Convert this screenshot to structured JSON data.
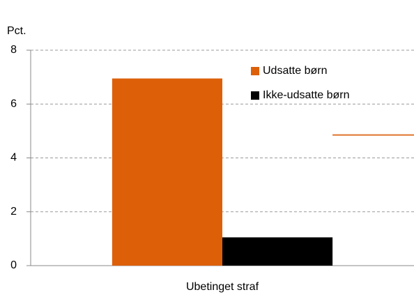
{
  "chart_data": {
    "type": "bar",
    "ylabel": "Pct.",
    "categories": [
      "Ubetinget straf"
    ],
    "series": [
      {
        "name": "Udsatte børn",
        "color": "#dd6009",
        "values": [
          6.95
        ]
      },
      {
        "name": "Ikke-udsatte børn",
        "color": "#000000",
        "values": [
          1.05
        ]
      }
    ],
    "reference_lines": [
      {
        "value": 4.85,
        "color": "#e0732a"
      }
    ],
    "ylim": [
      0,
      8
    ],
    "yticks": [
      0,
      2,
      4,
      6,
      8
    ],
    "grid": true,
    "legend": "upper right"
  }
}
